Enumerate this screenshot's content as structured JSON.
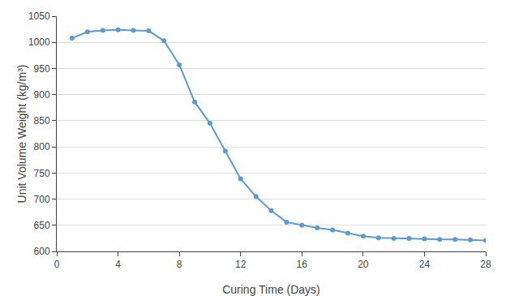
{
  "chart_data": {
    "type": "line",
    "xlabel": "Curing Time (Days)",
    "ylabel": "Unit Volume Weight (kg/m³)",
    "x": [
      1,
      2,
      3,
      4,
      5,
      6,
      7,
      8,
      9,
      10,
      11,
      12,
      13,
      14,
      15,
      16,
      17,
      18,
      19,
      20,
      21,
      22,
      23,
      24,
      25,
      26,
      27,
      28
    ],
    "values": [
      1008,
      1020,
      1023,
      1024,
      1023,
      1022,
      1003,
      957,
      886,
      845,
      792,
      739,
      705,
      678,
      656,
      650,
      645,
      641,
      635,
      629,
      626,
      625,
      625,
      624,
      623,
      623,
      622,
      621
    ],
    "color": "#5B9BD5",
    "marker": "circle",
    "xlim": [
      0,
      28
    ],
    "ylim": [
      600,
      1050
    ],
    "xticks": [
      0,
      4,
      8,
      12,
      16,
      20,
      24,
      28
    ],
    "yticks": [
      600,
      650,
      700,
      750,
      800,
      850,
      900,
      950,
      1000,
      1050
    ],
    "grid": "y"
  }
}
